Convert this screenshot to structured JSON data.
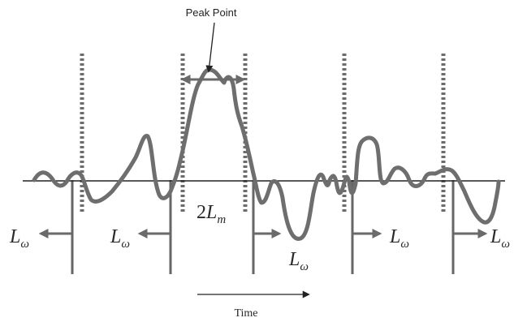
{
  "labels": {
    "peak": "Peak Point",
    "time": "Time",
    "window": "L",
    "window_sub": "ω",
    "center_coef": "2",
    "center": "L",
    "center_sub": "m"
  },
  "colors": {
    "signal": "#6e6e6e",
    "markers": "#666666",
    "axis": "#222222",
    "background": "#ffffff"
  }
}
